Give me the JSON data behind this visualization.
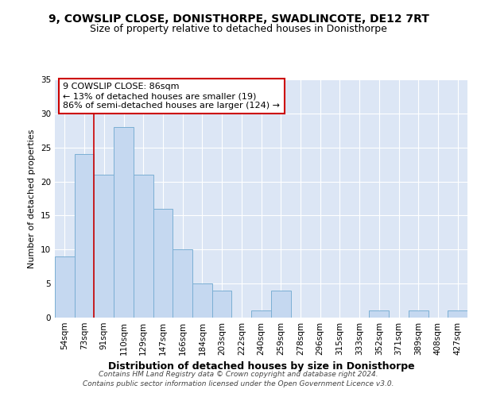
{
  "title": "9, COWSLIP CLOSE, DONISTHORPE, SWADLINCOTE, DE12 7RT",
  "subtitle": "Size of property relative to detached houses in Donisthorpe",
  "xlabel": "Distribution of detached houses by size in Donisthorpe",
  "ylabel": "Number of detached properties",
  "categories": [
    "54sqm",
    "73sqm",
    "91sqm",
    "110sqm",
    "129sqm",
    "147sqm",
    "166sqm",
    "184sqm",
    "203sqm",
    "222sqm",
    "240sqm",
    "259sqm",
    "278sqm",
    "296sqm",
    "315sqm",
    "333sqm",
    "352sqm",
    "371sqm",
    "389sqm",
    "408sqm",
    "427sqm"
  ],
  "values": [
    9,
    24,
    21,
    28,
    21,
    16,
    10,
    5,
    4,
    0,
    1,
    4,
    0,
    0,
    0,
    0,
    1,
    0,
    1,
    0,
    1
  ],
  "bar_color": "#c5d8f0",
  "bar_edge_color": "#7bafd4",
  "vline_color": "#cc0000",
  "vline_index": 2,
  "annotation_text": "9 COWSLIP CLOSE: 86sqm\n← 13% of detached houses are smaller (19)\n86% of semi-detached houses are larger (124) →",
  "annotation_box_color": "#ffffff",
  "annotation_box_edge": "#cc0000",
  "ylim": [
    0,
    35
  ],
  "yticks": [
    0,
    5,
    10,
    15,
    20,
    25,
    30,
    35
  ],
  "plot_bg_color": "#dce6f5",
  "fig_bg_color": "#ffffff",
  "footer_text": "Contains HM Land Registry data © Crown copyright and database right 2024.\nContains public sector information licensed under the Open Government Licence v3.0.",
  "title_fontsize": 10,
  "subtitle_fontsize": 9,
  "xlabel_fontsize": 9,
  "ylabel_fontsize": 8,
  "tick_fontsize": 7.5,
  "annotation_fontsize": 8,
  "footer_fontsize": 6.5
}
